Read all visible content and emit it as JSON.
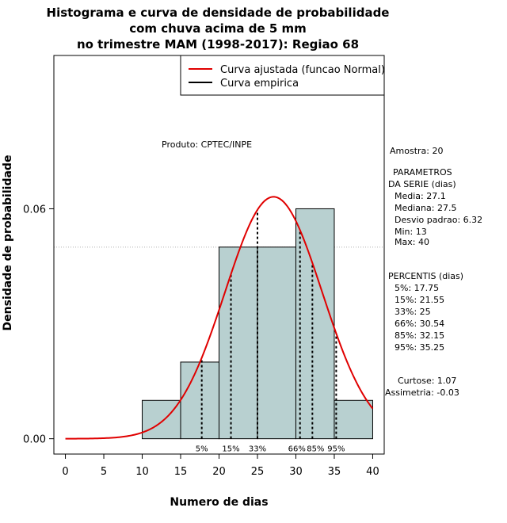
{
  "title_lines": [
    "Histograma e curva de densidade de probabilidade",
    "com chuva acima de 5 mm",
    "no trimestre MAM (1998-2017): Regiao 68"
  ],
  "produto": "Produto: CPTEC/INPE",
  "legend": {
    "items": [
      {
        "label": "Curva ajustada (funcao Normal)",
        "color": "#e00000"
      },
      {
        "label": "Curva empirica",
        "color": "#000000"
      }
    ],
    "placement": "top-right"
  },
  "side_text": [
    "Amostra: 20",
    "PARAMETROS",
    "DA SERIE (dias)",
    "Media: 27.1",
    "Mediana: 27.5",
    "Desvio padrao: 6.32",
    "Min: 13",
    "Max: 40",
    "PERCENTIS (dias)",
    "5%: 17.75",
    "15%: 21.55",
    "33%: 25",
    "66%: 30.54",
    "85%: 32.15",
    "95%: 35.25",
    "Curtose: 1.07",
    "Assimetria: -0.03"
  ],
  "chart_data": {
    "type": "bar",
    "xlabel": "Numero de dias",
    "ylabel": "Densidade de probabilidade",
    "xlim": [
      -1.5,
      41.5
    ],
    "ylim": [
      -0.004,
      0.1
    ],
    "x_ticks": [
      0,
      5,
      10,
      15,
      20,
      25,
      30,
      35,
      40
    ],
    "y_ticks": [
      0.0,
      0.06
    ],
    "y_tick_labels": [
      "0.00",
      "0.06"
    ],
    "grid": true,
    "grid_x": [
      -1.5,
      41.5
    ],
    "grid_y": [
      0.05,
      0.1
    ],
    "histogram": {
      "bin_edges": [
        10,
        15,
        20,
        25,
        30,
        35,
        40
      ],
      "densities": [
        0.01,
        0.02,
        0.05,
        0.05,
        0.06,
        0.01
      ],
      "fill": "#b8d0d0"
    },
    "normal_curve": {
      "mean": 27.1,
      "sd": 6.32,
      "x_range": [
        0,
        40
      ],
      "color": "#e00000"
    },
    "percentiles": [
      {
        "label": "5%",
        "value": 17.75
      },
      {
        "label": "15%",
        "value": 21.55
      },
      {
        "label": "33%",
        "value": 25
      },
      {
        "label": "66%",
        "value": 30.54
      },
      {
        "label": "85%",
        "value": 32.15
      },
      {
        "label": "95%",
        "value": 35.25
      }
    ]
  }
}
